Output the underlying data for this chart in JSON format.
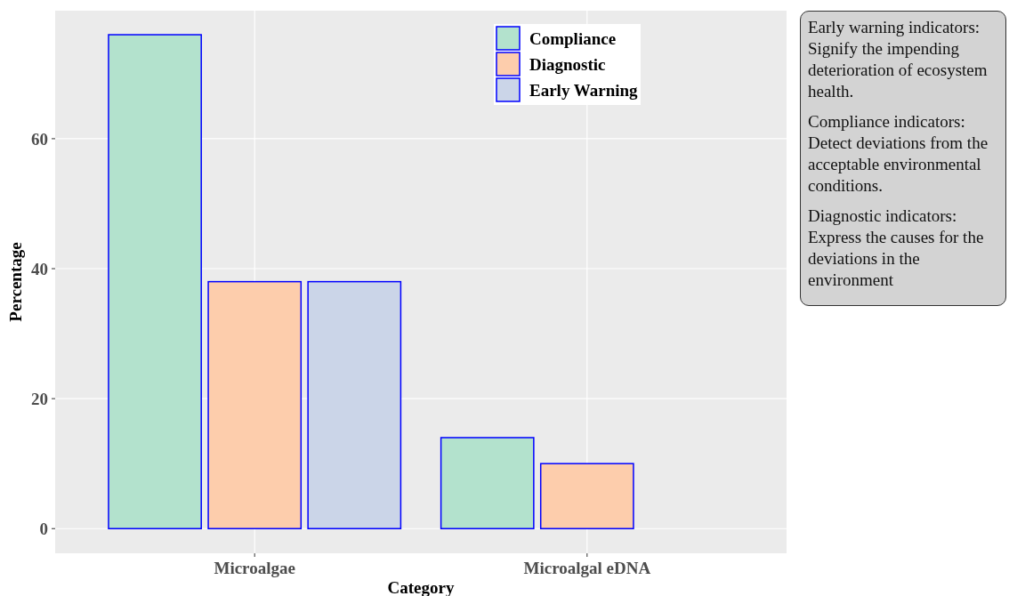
{
  "chart_data": {
    "type": "bar",
    "xlabel": "Category",
    "ylabel": "Percentage",
    "categories": [
      "Microalgae",
      "Microalgal eDNA"
    ],
    "series": [
      {
        "name": "Compliance",
        "color": "#b3e2cd",
        "values": [
          76,
          14
        ]
      },
      {
        "name": "Diagnostic",
        "color": "#fdcdac",
        "values": [
          38,
          10
        ]
      },
      {
        "name": "Early Warning",
        "color": "#cbd5e8",
        "values": [
          38,
          null
        ]
      }
    ],
    "ylim": [
      -3.8,
      79.7
    ],
    "yticks": [
      0,
      20,
      40,
      60
    ],
    "grid": true,
    "legend": "top",
    "annotations": [
      "Early warning indicators: Signify the impending deterioration of ecosystem health.",
      "Compliance indicators: Detect deviations from the acceptable environmental conditions.",
      "Diagnostic indicators: Express the causes for the deviations in the environment"
    ]
  }
}
